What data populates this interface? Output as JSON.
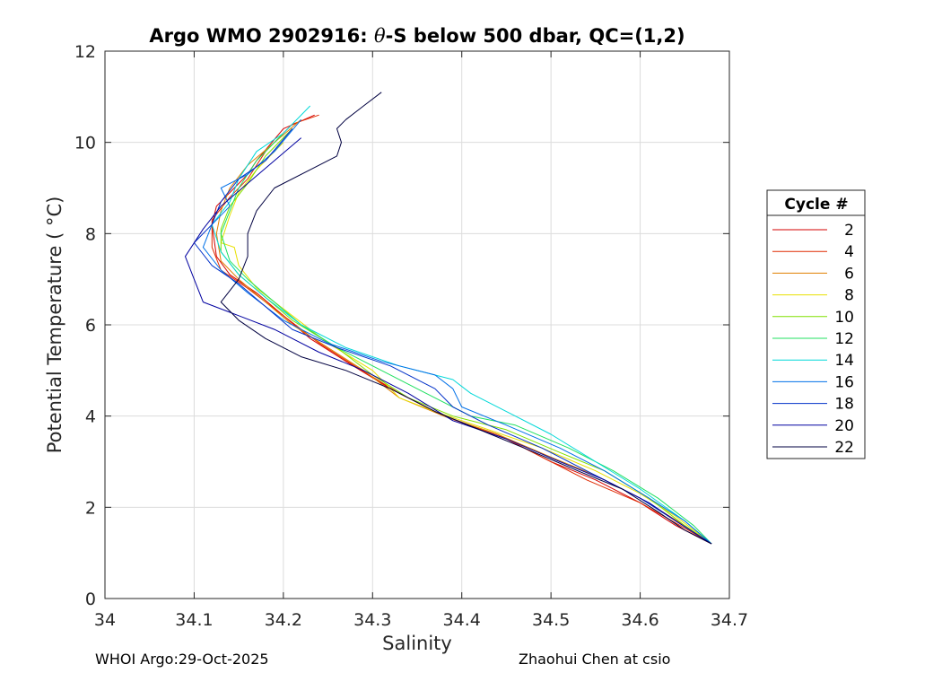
{
  "chart_data": {
    "type": "line",
    "title_prefix": "Argo WMO 2902916: ",
    "title_theta": "θ",
    "title_suffix": "-S below 500 dbar,  QC=(1,2)",
    "xlabel": "Salinity",
    "ylabel": "Potential Temperature ( °C)",
    "xlim": [
      34.0,
      34.7
    ],
    "ylim": [
      0,
      12
    ],
    "xticks": [
      34.0,
      34.1,
      34.2,
      34.3,
      34.4,
      34.5,
      34.6,
      34.7
    ],
    "xtick_labels": [
      "34",
      "34.1",
      "34.2",
      "34.3",
      "34.4",
      "34.5",
      "34.6",
      "34.7"
    ],
    "yticks": [
      0,
      2,
      4,
      6,
      8,
      10,
      12
    ],
    "ytick_labels": [
      "0",
      "2",
      "4",
      "6",
      "8",
      "10",
      "12"
    ],
    "grid": true,
    "legend": {
      "title": "Cycle #",
      "placement": "right-outside",
      "entries": [
        "2",
        "4",
        "6",
        "8",
        "10",
        "12",
        "14",
        "16",
        "18",
        "20",
        "22"
      ]
    },
    "series": [
      {
        "name": "2",
        "color": "#d40000",
        "points": [
          [
            34.235,
            10.6
          ],
          [
            34.2,
            10.3
          ],
          [
            34.17,
            9.6
          ],
          [
            34.16,
            9.3
          ],
          [
            34.145,
            9.0
          ],
          [
            34.125,
            8.6
          ],
          [
            34.12,
            8.2
          ],
          [
            34.125,
            7.5
          ],
          [
            34.14,
            7.1
          ],
          [
            34.17,
            6.7
          ],
          [
            34.2,
            6.2
          ],
          [
            34.23,
            5.7
          ],
          [
            34.27,
            5.2
          ],
          [
            34.32,
            4.6
          ],
          [
            34.38,
            4.0
          ],
          [
            34.45,
            3.5
          ],
          [
            34.5,
            3.0
          ],
          [
            34.55,
            2.6
          ],
          [
            34.6,
            2.1
          ],
          [
            34.64,
            1.6
          ],
          [
            34.68,
            1.2
          ]
        ]
      },
      {
        "name": "4",
        "color": "#e02a00",
        "points": [
          [
            34.24,
            10.6
          ],
          [
            34.21,
            10.4
          ],
          [
            34.18,
            9.8
          ],
          [
            34.16,
            9.2
          ],
          [
            34.14,
            8.8
          ],
          [
            34.12,
            8.3
          ],
          [
            34.12,
            7.7
          ],
          [
            34.13,
            7.2
          ],
          [
            34.16,
            6.8
          ],
          [
            34.2,
            6.2
          ],
          [
            34.24,
            5.6
          ],
          [
            34.28,
            5.1
          ],
          [
            34.33,
            4.5
          ],
          [
            34.38,
            4.0
          ],
          [
            34.44,
            3.6
          ],
          [
            34.49,
            3.1
          ],
          [
            34.54,
            2.6
          ],
          [
            34.6,
            2.1
          ],
          [
            34.645,
            1.6
          ],
          [
            34.68,
            1.2
          ]
        ]
      },
      {
        "name": "6",
        "color": "#e08000",
        "points": [
          [
            34.22,
            10.5
          ],
          [
            34.19,
            10.0
          ],
          [
            34.16,
            9.5
          ],
          [
            34.14,
            9.0
          ],
          [
            34.13,
            8.5
          ],
          [
            34.125,
            8.0
          ],
          [
            34.13,
            7.4
          ],
          [
            34.15,
            7.0
          ],
          [
            34.18,
            6.5
          ],
          [
            34.21,
            6.0
          ],
          [
            34.25,
            5.5
          ],
          [
            34.29,
            5.0
          ],
          [
            34.33,
            4.4
          ],
          [
            34.38,
            4.0
          ],
          [
            34.44,
            3.6
          ],
          [
            34.5,
            3.1
          ],
          [
            34.55,
            2.7
          ],
          [
            34.6,
            2.2
          ],
          [
            34.65,
            1.6
          ],
          [
            34.68,
            1.2
          ]
        ]
      },
      {
        "name": "8",
        "color": "#e8e000",
        "points": [
          [
            34.2,
            10.0
          ],
          [
            34.17,
            9.4
          ],
          [
            34.15,
            8.9
          ],
          [
            34.14,
            8.4
          ],
          [
            34.13,
            7.8
          ],
          [
            34.145,
            7.7
          ],
          [
            34.15,
            7.3
          ],
          [
            34.17,
            6.8
          ],
          [
            34.21,
            6.2
          ],
          [
            34.25,
            5.6
          ],
          [
            34.3,
            5.0
          ],
          [
            34.33,
            4.4
          ],
          [
            34.37,
            4.1
          ],
          [
            34.43,
            3.7
          ],
          [
            34.49,
            3.3
          ],
          [
            34.55,
            2.8
          ],
          [
            34.6,
            2.3
          ],
          [
            34.64,
            1.8
          ],
          [
            34.68,
            1.2
          ]
        ]
      },
      {
        "name": "10",
        "color": "#80e000",
        "points": [
          [
            34.21,
            10.3
          ],
          [
            34.18,
            9.7
          ],
          [
            34.16,
            9.1
          ],
          [
            34.14,
            8.6
          ],
          [
            34.13,
            8.1
          ],
          [
            34.13,
            7.6
          ],
          [
            34.15,
            7.1
          ],
          [
            34.18,
            6.6
          ],
          [
            34.21,
            6.1
          ],
          [
            34.26,
            5.5
          ],
          [
            34.3,
            4.9
          ],
          [
            34.34,
            4.4
          ],
          [
            34.39,
            4.0
          ],
          [
            34.45,
            3.7
          ],
          [
            34.51,
            3.2
          ],
          [
            34.56,
            2.8
          ],
          [
            34.61,
            2.2
          ],
          [
            34.65,
            1.6
          ],
          [
            34.68,
            1.2
          ]
        ]
      },
      {
        "name": "12",
        "color": "#20e060",
        "points": [
          [
            34.2,
            10.2
          ],
          [
            34.17,
            9.6
          ],
          [
            34.15,
            9.0
          ],
          [
            34.14,
            8.5
          ],
          [
            34.13,
            8.0
          ],
          [
            34.14,
            7.4
          ],
          [
            34.16,
            7.0
          ],
          [
            34.19,
            6.5
          ],
          [
            34.22,
            6.0
          ],
          [
            34.26,
            5.5
          ],
          [
            34.31,
            5.0
          ],
          [
            34.36,
            4.5
          ],
          [
            34.41,
            4.0
          ],
          [
            34.46,
            3.8
          ],
          [
            34.52,
            3.3
          ],
          [
            34.57,
            2.8
          ],
          [
            34.62,
            2.2
          ],
          [
            34.66,
            1.6
          ],
          [
            34.68,
            1.2
          ]
        ]
      },
      {
        "name": "14",
        "color": "#00d8d8",
        "points": [
          [
            34.23,
            10.8
          ],
          [
            34.2,
            10.2
          ],
          [
            34.17,
            9.8
          ],
          [
            34.15,
            9.2
          ],
          [
            34.14,
            8.7
          ],
          [
            34.12,
            8.2
          ],
          [
            34.13,
            7.6
          ],
          [
            34.15,
            7.1
          ],
          [
            34.18,
            6.6
          ],
          [
            34.22,
            6.0
          ],
          [
            34.27,
            5.5
          ],
          [
            34.33,
            5.1
          ],
          [
            34.39,
            4.8
          ],
          [
            34.41,
            4.5
          ],
          [
            34.45,
            4.1
          ],
          [
            34.5,
            3.6
          ],
          [
            34.55,
            3.0
          ],
          [
            34.6,
            2.4
          ],
          [
            34.65,
            1.7
          ],
          [
            34.68,
            1.2
          ]
        ]
      },
      {
        "name": "16",
        "color": "#0070e8",
        "points": [
          [
            34.22,
            10.5
          ],
          [
            34.19,
            9.8
          ],
          [
            34.16,
            9.3
          ],
          [
            34.13,
            9.0
          ],
          [
            34.14,
            8.6
          ],
          [
            34.12,
            8.2
          ],
          [
            34.11,
            7.7
          ],
          [
            34.13,
            7.2
          ],
          [
            34.16,
            6.7
          ],
          [
            34.2,
            6.1
          ],
          [
            34.25,
            5.6
          ],
          [
            34.31,
            5.2
          ],
          [
            34.37,
            4.9
          ],
          [
            34.39,
            4.6
          ],
          [
            34.4,
            4.2
          ],
          [
            34.45,
            3.8
          ],
          [
            34.51,
            3.3
          ],
          [
            34.56,
            2.8
          ],
          [
            34.61,
            2.2
          ],
          [
            34.65,
            1.7
          ],
          [
            34.68,
            1.2
          ]
        ]
      },
      {
        "name": "18",
        "color": "#0030c8",
        "points": [
          [
            34.21,
            10.3
          ],
          [
            34.18,
            9.6
          ],
          [
            34.15,
            9.2
          ],
          [
            34.13,
            8.7
          ],
          [
            34.12,
            8.2
          ],
          [
            34.1,
            7.8
          ],
          [
            34.12,
            7.3
          ],
          [
            34.15,
            6.9
          ],
          [
            34.18,
            6.4
          ],
          [
            34.21,
            5.9
          ],
          [
            34.26,
            5.5
          ],
          [
            34.32,
            5.1
          ],
          [
            34.37,
            4.6
          ],
          [
            34.39,
            4.2
          ],
          [
            34.43,
            3.8
          ],
          [
            34.49,
            3.3
          ],
          [
            34.55,
            2.7
          ],
          [
            34.6,
            2.2
          ],
          [
            34.64,
            1.7
          ],
          [
            34.68,
            1.2
          ]
        ]
      },
      {
        "name": "20",
        "color": "#0000a0",
        "points": [
          [
            34.22,
            10.1
          ],
          [
            34.19,
            9.6
          ],
          [
            34.16,
            9.1
          ],
          [
            34.13,
            8.6
          ],
          [
            34.11,
            8.1
          ],
          [
            34.09,
            7.5
          ],
          [
            34.1,
            7.0
          ],
          [
            34.11,
            6.5
          ],
          [
            34.15,
            6.2
          ],
          [
            34.19,
            5.9
          ],
          [
            34.24,
            5.4
          ],
          [
            34.29,
            5.0
          ],
          [
            34.34,
            4.5
          ],
          [
            34.39,
            3.9
          ],
          [
            34.45,
            3.5
          ],
          [
            34.51,
            3.0
          ],
          [
            34.56,
            2.6
          ],
          [
            34.61,
            2.1
          ],
          [
            34.64,
            1.7
          ],
          [
            34.68,
            1.2
          ]
        ]
      },
      {
        "name": "22",
        "color": "#000040",
        "points": [
          [
            34.31,
            11.1
          ],
          [
            34.29,
            10.8
          ],
          [
            34.27,
            10.5
          ],
          [
            34.26,
            10.3
          ],
          [
            34.265,
            10.0
          ],
          [
            34.26,
            9.7
          ],
          [
            34.23,
            9.4
          ],
          [
            34.19,
            9.0
          ],
          [
            34.17,
            8.5
          ],
          [
            34.16,
            8.0
          ],
          [
            34.16,
            7.5
          ],
          [
            34.15,
            7.0
          ],
          [
            34.13,
            6.5
          ],
          [
            34.15,
            6.1
          ],
          [
            34.18,
            5.7
          ],
          [
            34.22,
            5.3
          ],
          [
            34.27,
            5.0
          ],
          [
            34.32,
            4.6
          ],
          [
            34.37,
            4.1
          ],
          [
            34.42,
            3.7
          ],
          [
            34.47,
            3.3
          ],
          [
            34.53,
            2.8
          ],
          [
            34.58,
            2.4
          ],
          [
            34.62,
            1.9
          ],
          [
            34.65,
            1.5
          ],
          [
            34.68,
            1.2
          ]
        ]
      }
    ]
  },
  "footer": {
    "left": "WHOI Argo:29-Oct-2025",
    "right": "Zhaohui Chen at csio"
  }
}
